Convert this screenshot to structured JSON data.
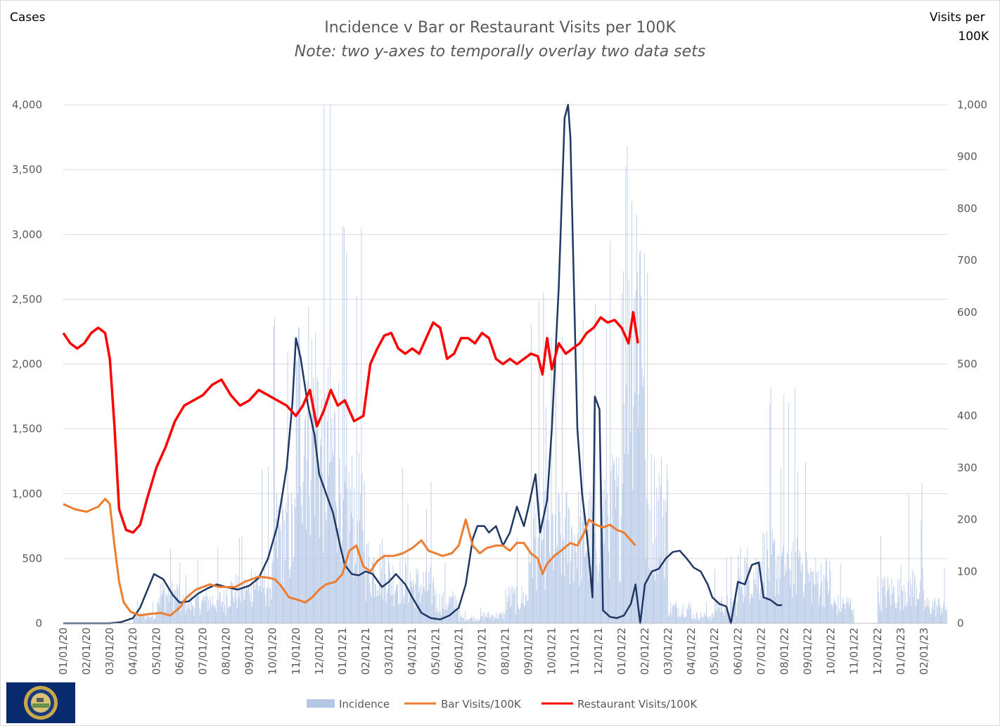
{
  "chart_data": {
    "type": "bar+line",
    "title": "Incidence v Bar or Restaurant Visits per 100K",
    "subtitle": "Note: two y-axes to temporally overlay two data sets",
    "ylabel_left": "Cases",
    "ylabel_right": "Visits per 100K",
    "ylim_left": [
      0,
      4000
    ],
    "ylim_right": [
      0,
      1000
    ],
    "yticks_left": [
      "0",
      "500",
      "1,000",
      "1,500",
      "2,000",
      "2,500",
      "3,000",
      "3,500",
      "4,000"
    ],
    "yticks_right": [
      "0",
      "100",
      "200",
      "300",
      "400",
      "500",
      "600",
      "700",
      "800",
      "900",
      "1,000"
    ],
    "x_categories": [
      "01/01/20",
      "02/01/20",
      "03/01/20",
      "04/01/20",
      "05/01/20",
      "06/01/20",
      "07/01/20",
      "08/01/20",
      "09/01/20",
      "10/01/20",
      "11/01/20",
      "12/01/20",
      "01/01/21",
      "02/01/21",
      "03/01/21",
      "04/01/21",
      "05/01/21",
      "06/01/21",
      "07/01/21",
      "08/01/21",
      "09/01/21",
      "10/01/21",
      "11/01/21",
      "12/01/21",
      "01/01/22",
      "02/01/22",
      "03/01/22",
      "04/01/22",
      "05/01/22",
      "06/01/22",
      "07/01/22",
      "08/01/22",
      "09/01/22",
      "10/01/22",
      "11/01/22",
      "12/01/22",
      "01/01/23",
      "02/01/23"
    ],
    "grid": true,
    "legend_position": "bottom",
    "series": [
      {
        "name": "Incidence",
        "type": "bar",
        "axis": "left",
        "color": "#b4c7e7",
        "monthly_avg": [
          0,
          0,
          2,
          60,
          230,
          160,
          180,
          260,
          330,
          700,
          1700,
          1350,
          900,
          450,
          350,
          300,
          170,
          40,
          60,
          200,
          700,
          700,
          700,
          900,
          2700,
          900,
          120,
          60,
          150,
          400,
          500,
          500,
          350,
          150,
          0,
          250,
          300,
          140
        ]
      },
      {
        "name": "Incidence (7-day avg)",
        "type": "line",
        "axis": "left",
        "color": "#1f3864",
        "in_legend": false,
        "points": [
          [
            0,
            0
          ],
          [
            2,
            0
          ],
          [
            2.5,
            10
          ],
          [
            3.0,
            40
          ],
          [
            3.3,
            120
          ],
          [
            3.6,
            250
          ],
          [
            3.9,
            380
          ],
          [
            4.3,
            340
          ],
          [
            4.7,
            220
          ],
          [
            5.0,
            160
          ],
          [
            5.4,
            170
          ],
          [
            5.8,
            230
          ],
          [
            6.2,
            270
          ],
          [
            6.6,
            300
          ],
          [
            7.0,
            280
          ],
          [
            7.5,
            260
          ],
          [
            8.0,
            290
          ],
          [
            8.4,
            350
          ],
          [
            8.8,
            500
          ],
          [
            9.2,
            750
          ],
          [
            9.6,
            1200
          ],
          [
            9.85,
            1700
          ],
          [
            10.0,
            2200
          ],
          [
            10.2,
            2050
          ],
          [
            10.5,
            1700
          ],
          [
            10.8,
            1450
          ],
          [
            11.0,
            1150
          ],
          [
            11.3,
            1000
          ],
          [
            11.6,
            850
          ],
          [
            11.9,
            600
          ],
          [
            12.1,
            450
          ],
          [
            12.4,
            380
          ],
          [
            12.7,
            370
          ],
          [
            13.0,
            400
          ],
          [
            13.3,
            380
          ],
          [
            13.7,
            280
          ],
          [
            14.0,
            320
          ],
          [
            14.3,
            380
          ],
          [
            14.7,
            300
          ],
          [
            15.0,
            200
          ],
          [
            15.4,
            80
          ],
          [
            15.8,
            40
          ],
          [
            16.2,
            30
          ],
          [
            16.6,
            60
          ],
          [
            17.0,
            120
          ],
          [
            17.3,
            300
          ],
          [
            17.6,
            650
          ],
          [
            17.8,
            750
          ],
          [
            18.1,
            750
          ],
          [
            18.3,
            700
          ],
          [
            18.6,
            750
          ],
          [
            18.9,
            600
          ],
          [
            19.2,
            700
          ],
          [
            19.5,
            900
          ],
          [
            19.8,
            750
          ],
          [
            20.0,
            900
          ],
          [
            20.3,
            1150
          ],
          [
            20.5,
            700
          ],
          [
            20.8,
            950
          ],
          [
            21.0,
            1500
          ],
          [
            21.3,
            2600
          ],
          [
            21.55,
            3900
          ],
          [
            21.7,
            4000
          ],
          [
            21.8,
            3750
          ],
          [
            21.95,
            2600
          ],
          [
            22.1,
            1500
          ],
          [
            22.3,
            1000
          ],
          [
            22.5,
            700
          ],
          [
            22.75,
            200
          ],
          [
            22.85,
            1750
          ],
          [
            23.05,
            1650
          ],
          [
            23.2,
            100
          ],
          [
            23.5,
            50
          ],
          [
            23.8,
            40
          ],
          [
            24.1,
            60
          ],
          [
            24.4,
            150
          ],
          [
            24.6,
            300
          ],
          [
            24.8,
            0
          ],
          [
            25.0,
            300
          ],
          [
            25.3,
            400
          ],
          [
            25.6,
            420
          ],
          [
            25.9,
            500
          ],
          [
            26.2,
            550
          ],
          [
            26.5,
            560
          ],
          [
            26.8,
            500
          ],
          [
            27.1,
            430
          ],
          [
            27.4,
            400
          ],
          [
            27.7,
            300
          ],
          [
            27.9,
            200
          ],
          [
            28.2,
            150
          ],
          [
            28.5,
            130
          ],
          [
            28.7,
            0
          ],
          [
            29.0,
            320
          ],
          [
            29.3,
            300
          ],
          [
            29.6,
            450
          ],
          [
            29.9,
            470
          ],
          [
            30.1,
            200
          ],
          [
            30.4,
            180
          ],
          [
            30.7,
            140
          ],
          [
            30.9,
            140
          ]
        ]
      },
      {
        "name": "Bar Visits/100K",
        "type": "line",
        "axis": "right",
        "color": "#ed7d31",
        "points": [
          [
            0,
            230
          ],
          [
            0.5,
            220
          ],
          [
            1.0,
            215
          ],
          [
            1.5,
            225
          ],
          [
            1.8,
            240
          ],
          [
            2.0,
            230
          ],
          [
            2.2,
            150
          ],
          [
            2.4,
            80
          ],
          [
            2.6,
            40
          ],
          [
            2.9,
            22
          ],
          [
            3.3,
            15
          ],
          [
            3.7,
            18
          ],
          [
            4.2,
            20
          ],
          [
            4.6,
            15
          ],
          [
            5.0,
            30
          ],
          [
            5.3,
            50
          ],
          [
            5.7,
            65
          ],
          [
            6.0,
            70
          ],
          [
            6.3,
            75
          ],
          [
            6.7,
            70
          ],
          [
            7.0,
            70
          ],
          [
            7.4,
            70
          ],
          [
            7.8,
            80
          ],
          [
            8.1,
            85
          ],
          [
            8.4,
            90
          ],
          [
            8.8,
            88
          ],
          [
            9.1,
            85
          ],
          [
            9.4,
            70
          ],
          [
            9.7,
            50
          ],
          [
            10.1,
            45
          ],
          [
            10.4,
            40
          ],
          [
            10.7,
            50
          ],
          [
            11.0,
            65
          ],
          [
            11.3,
            75
          ],
          [
            11.7,
            80
          ],
          [
            12.0,
            95
          ],
          [
            12.3,
            140
          ],
          [
            12.6,
            150
          ],
          [
            12.9,
            110
          ],
          [
            13.2,
            100
          ],
          [
            13.5,
            120
          ],
          [
            13.8,
            130
          ],
          [
            14.2,
            130
          ],
          [
            14.6,
            135
          ],
          [
            15.0,
            145
          ],
          [
            15.4,
            160
          ],
          [
            15.7,
            140
          ],
          [
            16.0,
            135
          ],
          [
            16.3,
            130
          ],
          [
            16.7,
            135
          ],
          [
            17.0,
            150
          ],
          [
            17.3,
            200
          ],
          [
            17.6,
            150
          ],
          [
            17.9,
            135
          ],
          [
            18.2,
            145
          ],
          [
            18.6,
            150
          ],
          [
            18.9,
            150
          ],
          [
            19.2,
            140
          ],
          [
            19.5,
            155
          ],
          [
            19.8,
            155
          ],
          [
            20.1,
            135
          ],
          [
            20.4,
            125
          ],
          [
            20.6,
            95
          ],
          [
            20.8,
            115
          ],
          [
            21.1,
            130
          ],
          [
            21.4,
            140
          ],
          [
            21.8,
            155
          ],
          [
            22.1,
            150
          ],
          [
            22.4,
            175
          ],
          [
            22.6,
            200
          ],
          [
            22.9,
            190
          ],
          [
            23.2,
            185
          ],
          [
            23.5,
            190
          ],
          [
            23.8,
            180
          ],
          [
            24.1,
            175
          ],
          [
            24.4,
            160
          ],
          [
            24.6,
            150
          ]
        ]
      },
      {
        "name": "Restaurant Visits/100K",
        "type": "line",
        "axis": "right",
        "color": "#ff0000",
        "points": [
          [
            0,
            560
          ],
          [
            0.3,
            540
          ],
          [
            0.6,
            530
          ],
          [
            0.9,
            540
          ],
          [
            1.2,
            560
          ],
          [
            1.5,
            570
          ],
          [
            1.8,
            560
          ],
          [
            2.0,
            510
          ],
          [
            2.2,
            380
          ],
          [
            2.4,
            220
          ],
          [
            2.7,
            180
          ],
          [
            3.0,
            175
          ],
          [
            3.3,
            190
          ],
          [
            3.6,
            240
          ],
          [
            4.0,
            300
          ],
          [
            4.4,
            340
          ],
          [
            4.8,
            390
          ],
          [
            5.2,
            420
          ],
          [
            5.6,
            430
          ],
          [
            6.0,
            440
          ],
          [
            6.4,
            460
          ],
          [
            6.8,
            470
          ],
          [
            7.2,
            440
          ],
          [
            7.6,
            420
          ],
          [
            8.0,
            430
          ],
          [
            8.4,
            450
          ],
          [
            8.8,
            440
          ],
          [
            9.2,
            430
          ],
          [
            9.6,
            420
          ],
          [
            10.0,
            400
          ],
          [
            10.3,
            420
          ],
          [
            10.6,
            450
          ],
          [
            10.9,
            380
          ],
          [
            11.2,
            410
          ],
          [
            11.5,
            450
          ],
          [
            11.8,
            420
          ],
          [
            12.1,
            430
          ],
          [
            12.5,
            390
          ],
          [
            12.9,
            400
          ],
          [
            13.2,
            500
          ],
          [
            13.5,
            530
          ],
          [
            13.8,
            555
          ],
          [
            14.1,
            560
          ],
          [
            14.4,
            530
          ],
          [
            14.7,
            520
          ],
          [
            15.0,
            530
          ],
          [
            15.3,
            520
          ],
          [
            15.6,
            550
          ],
          [
            15.9,
            580
          ],
          [
            16.2,
            570
          ],
          [
            16.5,
            510
          ],
          [
            16.8,
            520
          ],
          [
            17.1,
            550
          ],
          [
            17.4,
            550
          ],
          [
            17.7,
            540
          ],
          [
            18.0,
            560
          ],
          [
            18.3,
            550
          ],
          [
            18.6,
            510
          ],
          [
            18.9,
            500
          ],
          [
            19.2,
            510
          ],
          [
            19.5,
            500
          ],
          [
            19.8,
            510
          ],
          [
            20.1,
            520
          ],
          [
            20.4,
            515
          ],
          [
            20.6,
            480
          ],
          [
            20.8,
            550
          ],
          [
            21.0,
            490
          ],
          [
            21.3,
            540
          ],
          [
            21.6,
            520
          ],
          [
            21.9,
            530
          ],
          [
            22.2,
            540
          ],
          [
            22.5,
            560
          ],
          [
            22.8,
            570
          ],
          [
            23.1,
            590
          ],
          [
            23.4,
            580
          ],
          [
            23.7,
            585
          ],
          [
            24.0,
            570
          ],
          [
            24.3,
            540
          ],
          [
            24.5,
            600
          ],
          [
            24.7,
            540
          ]
        ]
      }
    ]
  },
  "logo": {
    "name": "Nebraska state seal flag",
    "bg_color": "#0a2a6e",
    "seal_color": "#c9a84c",
    "seal_text": "GREAT SEAL OF THE STATE OF NEBRASKA"
  }
}
